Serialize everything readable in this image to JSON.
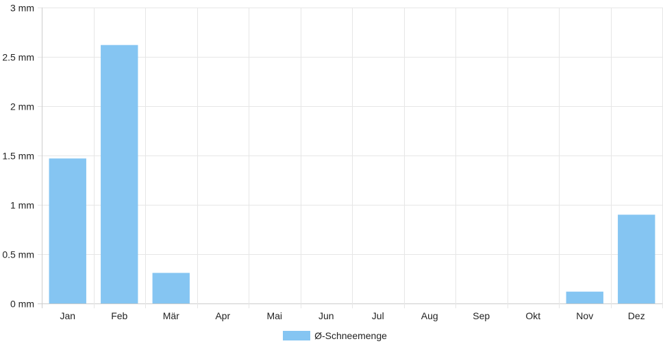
{
  "chart_data": {
    "type": "bar",
    "categories": [
      "Jan",
      "Feb",
      "Mär",
      "Apr",
      "Mai",
      "Jun",
      "Jul",
      "Aug",
      "Sep",
      "Okt",
      "Nov",
      "Dez"
    ],
    "series": [
      {
        "name": "Ø-Schneemenge",
        "values": [
          1.47,
          2.62,
          0.31,
          0,
          0,
          0,
          0,
          0,
          0,
          0,
          0.12,
          0.9
        ],
        "color": "#85c5f2"
      }
    ],
    "y_ticks": [
      "0 mm",
      "0.5 mm",
      "1 mm",
      "1.5 mm",
      "2 mm",
      "2.5 mm",
      "3 mm"
    ],
    "ylim": [
      0,
      3
    ],
    "ytick_step": 0.5,
    "grid": true,
    "legend_position": "bottom-center",
    "grid_color": "#e6e6e6",
    "axis_color": "#cccccc"
  }
}
